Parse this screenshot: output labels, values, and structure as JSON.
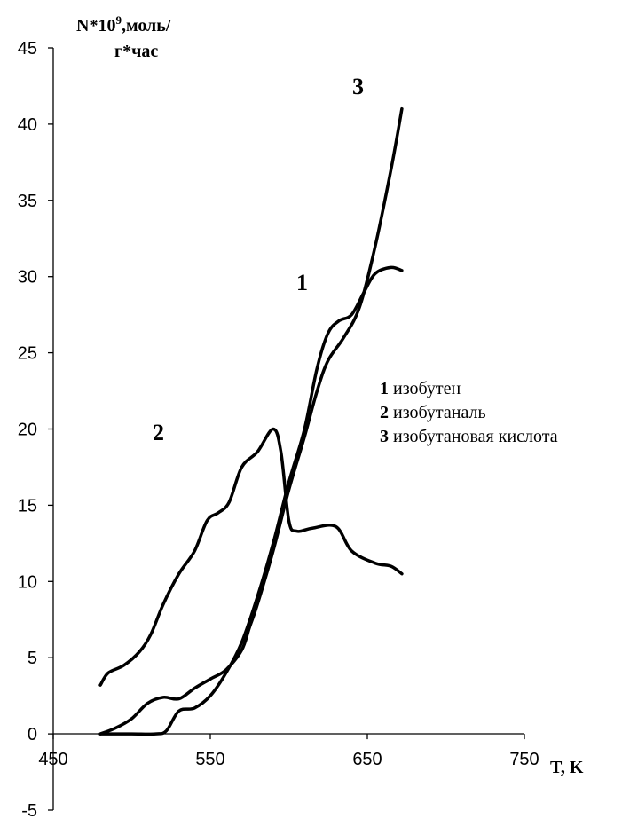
{
  "chart_data": {
    "type": "line",
    "ylabel_line1": "N*10",
    "ylabel_sup": "9",
    "ylabel_line1_suffix": ",моль/",
    "ylabel_line2": "г*час",
    "xlabel": "T, K",
    "xlim": [
      450,
      750
    ],
    "ylim": [
      -5,
      45
    ],
    "x_ticks": [
      "450",
      "550",
      "650",
      "750"
    ],
    "y_ticks": [
      "-5",
      "0",
      "5",
      "10",
      "15",
      "20",
      "25",
      "30",
      "35",
      "40",
      "45"
    ],
    "grid": false,
    "legend_position": "right",
    "series": [
      {
        "name": "изобутен",
        "number": "1",
        "points": [
          [
            480,
            0
          ],
          [
            500,
            0
          ],
          [
            515,
            0
          ],
          [
            522,
            0.2
          ],
          [
            530,
            1.5
          ],
          [
            540,
            1.7
          ],
          [
            550,
            2.5
          ],
          [
            560,
            4
          ],
          [
            570,
            6
          ],
          [
            580,
            9
          ],
          [
            590,
            12.5
          ],
          [
            600,
            16.5
          ],
          [
            610,
            20
          ],
          [
            618,
            24
          ],
          [
            625,
            26.3
          ],
          [
            632,
            27.1
          ],
          [
            640,
            27.5
          ],
          [
            648,
            29
          ],
          [
            655,
            30.2
          ],
          [
            665,
            30.6
          ],
          [
            672,
            30.4
          ]
        ]
      },
      {
        "name": "изобутаналь",
        "number": "2",
        "points": [
          [
            480,
            3.2
          ],
          [
            485,
            4
          ],
          [
            495,
            4.5
          ],
          [
            505,
            5.4
          ],
          [
            512,
            6.5
          ],
          [
            520,
            8.5
          ],
          [
            530,
            10.5
          ],
          [
            540,
            12
          ],
          [
            548,
            14
          ],
          [
            555,
            14.5
          ],
          [
            562,
            15.2
          ],
          [
            570,
            17.5
          ],
          [
            580,
            18.5
          ],
          [
            590,
            20
          ],
          [
            595,
            18.5
          ],
          [
            600,
            14
          ],
          [
            605,
            13.3
          ],
          [
            615,
            13.5
          ],
          [
            630,
            13.6
          ],
          [
            640,
            12
          ],
          [
            655,
            11.2
          ],
          [
            665,
            11
          ],
          [
            672,
            10.5
          ]
        ]
      },
      {
        "name": "изобутановая кислота",
        "number": "3",
        "points": [
          [
            480,
            0
          ],
          [
            490,
            0.4
          ],
          [
            500,
            1
          ],
          [
            510,
            2
          ],
          [
            520,
            2.4
          ],
          [
            530,
            2.3
          ],
          [
            540,
            3
          ],
          [
            550,
            3.6
          ],
          [
            560,
            4.2
          ],
          [
            570,
            5.5
          ],
          [
            575,
            7
          ],
          [
            580,
            8.5
          ],
          [
            590,
            12
          ],
          [
            600,
            16
          ],
          [
            610,
            19.5
          ],
          [
            618,
            22.5
          ],
          [
            625,
            24.5
          ],
          [
            635,
            26
          ],
          [
            645,
            28
          ],
          [
            655,
            32
          ],
          [
            665,
            37
          ],
          [
            672,
            41
          ]
        ]
      }
    ],
    "curve_labels": [
      "1",
      "2",
      "3"
    ],
    "legend": [
      {
        "num": "1",
        "text": "изобутен"
      },
      {
        "num": "2",
        "text": "изобутаналь"
      },
      {
        "num": "3",
        "text": "изобутановая кислота"
      }
    ]
  }
}
